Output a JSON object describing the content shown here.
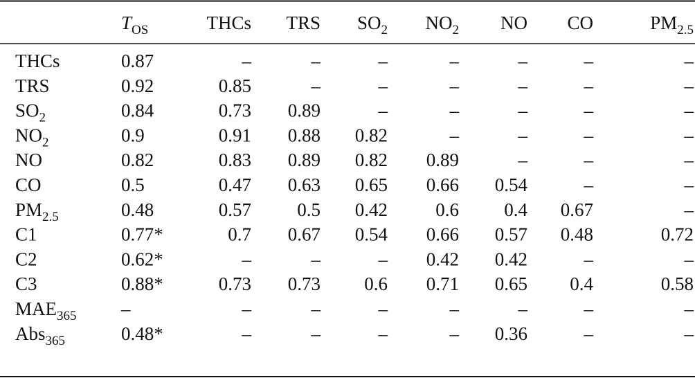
{
  "table": {
    "header": [
      {
        "text": "T",
        "sub": "OS",
        "italic": true
      },
      {
        "text": "THCs"
      },
      {
        "text": "TRS"
      },
      {
        "text": "SO",
        "sub": "2"
      },
      {
        "text": "NO",
        "sub": "2"
      },
      {
        "text": "NO"
      },
      {
        "text": "CO"
      },
      {
        "text": "PM",
        "sub": "2.5"
      }
    ],
    "rows": [
      {
        "label": {
          "text": "THCs"
        },
        "cells": [
          "0.87",
          "–",
          "–",
          "–",
          "–",
          "–",
          "–",
          "–"
        ]
      },
      {
        "label": {
          "text": "TRS"
        },
        "cells": [
          "0.92",
          "0.85",
          "–",
          "–",
          "–",
          "–",
          "–",
          "–"
        ]
      },
      {
        "label": {
          "text": "SO",
          "sub": "2"
        },
        "cells": [
          "0.84",
          "0.73",
          "0.89",
          "–",
          "–",
          "–",
          "–",
          "–"
        ]
      },
      {
        "label": {
          "text": "NO",
          "sub": "2"
        },
        "cells": [
          "0.9",
          "0.91",
          "0.88",
          "0.82",
          "–",
          "–",
          "–",
          "–"
        ]
      },
      {
        "label": {
          "text": "NO"
        },
        "cells": [
          "0.82",
          "0.83",
          "0.89",
          "0.82",
          "0.89",
          "–",
          "–",
          "–"
        ]
      },
      {
        "label": {
          "text": "CO"
        },
        "cells": [
          "0.5",
          "0.47",
          "0.63",
          "0.65",
          "0.66",
          "0.54",
          "–",
          "–"
        ]
      },
      {
        "label": {
          "text": "PM",
          "sub": "2.5"
        },
        "cells": [
          "0.48",
          "0.57",
          "0.5",
          "0.42",
          "0.6",
          "0.4",
          "0.67",
          "–"
        ]
      },
      {
        "label": {
          "text": "C1"
        },
        "cells": [
          "0.77*",
          "0.7",
          "0.67",
          "0.54",
          "0.66",
          "0.57",
          "0.48",
          "0.72"
        ]
      },
      {
        "label": {
          "text": "C2"
        },
        "cells": [
          "0.62*",
          "–",
          "–",
          "–",
          "0.42",
          "0.42",
          "–",
          "–"
        ]
      },
      {
        "label": {
          "text": "C3"
        },
        "cells": [
          "0.88*",
          "0.73",
          "0.73",
          "0.6",
          "0.71",
          "0.65",
          "0.4",
          "0.58"
        ]
      },
      {
        "label": {
          "text": "MAE",
          "sub": "365"
        },
        "cells": [
          "–",
          "–",
          "–",
          "–",
          "–",
          "–",
          "–",
          "–"
        ]
      },
      {
        "label": {
          "text": "Abs",
          "sub": "365"
        },
        "cells": [
          "0.48*",
          "–",
          "–",
          "–",
          "–",
          "0.36",
          "–",
          "–"
        ]
      }
    ]
  }
}
